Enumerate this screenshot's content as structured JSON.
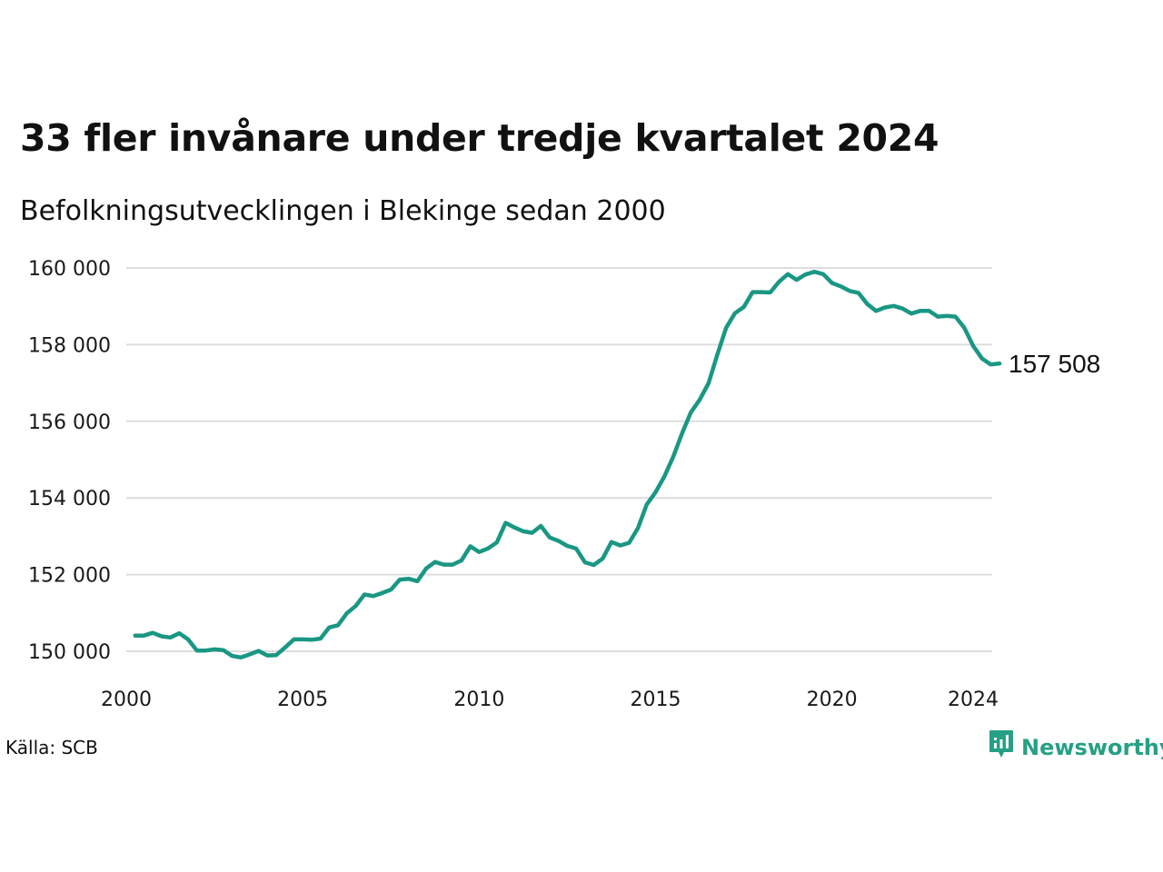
{
  "title": "33 fler invånare under tredje kvartalet 2024",
  "subtitle": "Befolkningsutvecklingen i Blekinge sedan 2000",
  "source": "Källa: SCB",
  "brand": {
    "name": "Newsworthy",
    "icon": "bar-chart-speech-bubble-icon",
    "color": "#26a085"
  },
  "colors": {
    "line": "#1a9783",
    "grid": "#dddddd",
    "text": "#111111"
  },
  "chart_data": {
    "type": "line",
    "title": "33 fler invånare under tredje kvartalet 2024",
    "subtitle": "Befolkningsutvecklingen i Blekinge sedan 2000",
    "xlabel": "",
    "ylabel": "",
    "xlim": [
      2000,
      2024.75
    ],
    "ylim": [
      149500,
      160250
    ],
    "grid": "horizontal",
    "legend": "none",
    "x_ticks": [
      2000,
      2005,
      2010,
      2015,
      2020,
      2024
    ],
    "x_tick_labels": [
      "2000",
      "2005",
      "2010",
      "2015",
      "2020",
      "2024"
    ],
    "y_ticks": [
      150000,
      152000,
      154000,
      156000,
      158000,
      160000
    ],
    "y_tick_labels": [
      "150 000",
      "152 000",
      "154 000",
      "156 000",
      "158 000",
      "160 000"
    ],
    "end_label": "157 508",
    "series": [
      {
        "color": "#1a9783",
        "x": [
          2000.25,
          2000.5,
          2000.75,
          2001.0,
          2001.25,
          2001.5,
          2001.75,
          2002.0,
          2002.25,
          2002.5,
          2002.75,
          2003.0,
          2003.25,
          2003.5,
          2003.75,
          2004.0,
          2004.25,
          2004.5,
          2004.75,
          2005.0,
          2005.25,
          2005.5,
          2005.75,
          2006.0,
          2006.25,
          2006.5,
          2006.75,
          2007.0,
          2007.25,
          2007.5,
          2007.75,
          2008.0,
          2008.25,
          2008.5,
          2008.75,
          2009.0,
          2009.25,
          2009.5,
          2009.75,
          2010.0,
          2010.25,
          2010.5,
          2010.75,
          2011.0,
          2011.25,
          2011.5,
          2011.75,
          2012.0,
          2012.25,
          2012.5,
          2012.75,
          2013.0,
          2013.25,
          2013.5,
          2013.75,
          2014.0,
          2014.25,
          2014.5,
          2014.75,
          2015.0,
          2015.25,
          2015.5,
          2015.75,
          2016.0,
          2016.25,
          2016.5,
          2016.75,
          2017.0,
          2017.25,
          2017.5,
          2017.75,
          2018.0,
          2018.25,
          2018.5,
          2018.75,
          2019.0,
          2019.25,
          2019.5,
          2019.75,
          2020.0,
          2020.25,
          2020.5,
          2020.75,
          2021.0,
          2021.25,
          2021.5,
          2021.75,
          2022.0,
          2022.25,
          2022.5,
          2022.75,
          2023.0,
          2023.25,
          2023.5,
          2023.75,
          2024.0,
          2024.25,
          2024.5,
          2024.75
        ],
        "values": [
          150410,
          150410,
          150480,
          150390,
          150360,
          150470,
          150310,
          150020,
          150020,
          150050,
          150030,
          149880,
          149840,
          149920,
          150010,
          149890,
          149900,
          150100,
          150310,
          150310,
          150300,
          150330,
          150620,
          150680,
          150990,
          151180,
          151480,
          151440,
          151520,
          151610,
          151870,
          151890,
          151830,
          152160,
          152330,
          152260,
          152260,
          152370,
          152740,
          152590,
          152680,
          152840,
          153350,
          153230,
          153130,
          153090,
          153270,
          152970,
          152880,
          152750,
          152680,
          152320,
          152250,
          152420,
          152850,
          152760,
          152830,
          153210,
          153830,
          154150,
          154560,
          155070,
          155680,
          156230,
          156560,
          156990,
          157740,
          158440,
          158820,
          158980,
          159370,
          159370,
          159360,
          159640,
          159840,
          159690,
          159830,
          159900,
          159840,
          159610,
          159520,
          159400,
          159350,
          159060,
          158880,
          158970,
          159010,
          158940,
          158810,
          158880,
          158880,
          158730,
          158750,
          158730,
          158440,
          157970,
          157640,
          157480,
          157508
        ]
      }
    ]
  }
}
